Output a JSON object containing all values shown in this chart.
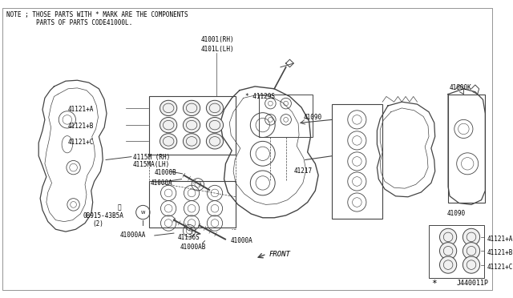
{
  "background_color": "#ffffff",
  "note_text_line1": "NOTE ; THOSE PARTS WITH * MARK ARE THE COMPONENTS",
  "note_text_line2": "        PARTS OF PARTS CODE41000L.",
  "diagram_id": "J440011P",
  "text_color": "#000000",
  "line_color": "#444444",
  "fig_width": 6.4,
  "fig_height": 3.72,
  "dpi": 100
}
